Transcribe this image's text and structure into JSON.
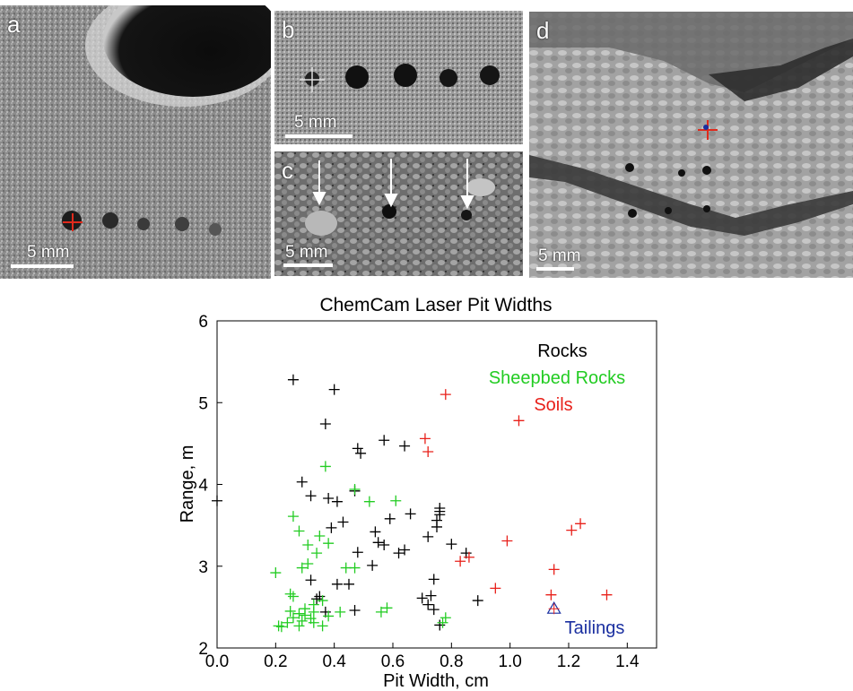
{
  "panels": {
    "a": {
      "letter": "a",
      "scale": "5 mm"
    },
    "b": {
      "letter": "b",
      "scale": "5 mm"
    },
    "c": {
      "letter": "c",
      "scale": "5 mm"
    },
    "d": {
      "letter": "d",
      "scale": "5 mm"
    }
  },
  "chart_data": {
    "type": "scatter",
    "title": "ChemCam Laser Pit Widths",
    "xlabel": "Pit Width, cm",
    "ylabel": "Range, m",
    "xlim": [
      0.0,
      1.5
    ],
    "ylim": [
      2,
      6
    ],
    "xticks": [
      "0.0",
      "0.2",
      "0.4",
      "0.6",
      "0.8",
      "1.0",
      "1.2",
      "1.4"
    ],
    "yticks": [
      "2",
      "3",
      "4",
      "5",
      "6"
    ],
    "grid": false,
    "legend_placement": "top-right",
    "series": [
      {
        "name": "Rocks",
        "color": "#000000",
        "marker": "plus",
        "points": [
          [
            0.26,
            5.28
          ],
          [
            0.4,
            5.16
          ],
          [
            0.37,
            4.74
          ],
          [
            0.57,
            4.54
          ],
          [
            0.48,
            4.44
          ],
          [
            0.64,
            4.47
          ],
          [
            0.49,
            4.38
          ],
          [
            0.29,
            4.03
          ],
          [
            0.47,
            3.92
          ],
          [
            0.32,
            3.86
          ],
          [
            0.38,
            3.83
          ],
          [
            0.41,
            3.79
          ],
          [
            0.59,
            3.58
          ],
          [
            0.66,
            3.64
          ],
          [
            0.76,
            3.71
          ],
          [
            0.76,
            3.67
          ],
          [
            0.76,
            3.63
          ],
          [
            0.75,
            3.56
          ],
          [
            0.75,
            3.48
          ],
          [
            0.43,
            3.54
          ],
          [
            0.39,
            3.47
          ],
          [
            0.72,
            3.36
          ],
          [
            0.54,
            3.42
          ],
          [
            0.55,
            3.29
          ],
          [
            0.57,
            3.26
          ],
          [
            0.48,
            3.17
          ],
          [
            0.62,
            3.16
          ],
          [
            0.64,
            3.2
          ],
          [
            0.8,
            3.27
          ],
          [
            0.85,
            3.16
          ],
          [
            0.53,
            3.01
          ],
          [
            0.32,
            2.83
          ],
          [
            0.41,
            2.78
          ],
          [
            0.45,
            2.78
          ],
          [
            0.34,
            2.6
          ],
          [
            0.35,
            2.63
          ],
          [
            0.7,
            2.61
          ],
          [
            0.73,
            2.64
          ],
          [
            0.74,
            2.84
          ],
          [
            0.72,
            2.53
          ],
          [
            0.74,
            2.47
          ],
          [
            0.89,
            2.58
          ],
          [
            0.47,
            2.46
          ],
          [
            0.37,
            2.44
          ],
          [
            0.76,
            2.28
          ],
          [
            0.0,
            3.8
          ]
        ]
      },
      {
        "name": "Sheepbed Rocks",
        "color": "#22cc22",
        "marker": "plus",
        "points": [
          [
            0.37,
            4.22
          ],
          [
            0.47,
            3.94
          ],
          [
            0.52,
            3.79
          ],
          [
            0.61,
            3.8
          ],
          [
            0.26,
            3.61
          ],
          [
            0.28,
            3.43
          ],
          [
            0.35,
            3.37
          ],
          [
            0.31,
            3.26
          ],
          [
            0.38,
            3.28
          ],
          [
            0.34,
            3.16
          ],
          [
            0.29,
            2.98
          ],
          [
            0.31,
            3.03
          ],
          [
            0.44,
            2.98
          ],
          [
            0.47,
            2.98
          ],
          [
            0.2,
            2.92
          ],
          [
            0.25,
            2.66
          ],
          [
            0.26,
            2.63
          ],
          [
            0.33,
            2.53
          ],
          [
            0.36,
            2.58
          ],
          [
            0.3,
            2.48
          ],
          [
            0.28,
            2.42
          ],
          [
            0.33,
            2.44
          ],
          [
            0.42,
            2.44
          ],
          [
            0.56,
            2.44
          ],
          [
            0.58,
            2.49
          ],
          [
            0.26,
            2.37
          ],
          [
            0.29,
            2.33
          ],
          [
            0.32,
            2.36
          ],
          [
            0.24,
            2.31
          ],
          [
            0.21,
            2.27
          ],
          [
            0.22,
            2.26
          ],
          [
            0.28,
            2.27
          ],
          [
            0.33,
            2.31
          ],
          [
            0.36,
            2.27
          ],
          [
            0.38,
            2.39
          ],
          [
            0.78,
            2.37
          ],
          [
            0.77,
            2.31
          ],
          [
            0.3,
            2.4
          ],
          [
            0.25,
            2.45
          ]
        ]
      },
      {
        "name": "Soils",
        "color": "#e8201a",
        "marker": "plus",
        "points": [
          [
            0.78,
            5.1
          ],
          [
            1.03,
            4.78
          ],
          [
            0.71,
            4.56
          ],
          [
            0.72,
            4.4
          ],
          [
            1.24,
            3.52
          ],
          [
            1.21,
            3.44
          ],
          [
            0.99,
            3.31
          ],
          [
            0.86,
            3.11
          ],
          [
            0.83,
            3.06
          ],
          [
            1.15,
            2.96
          ],
          [
            0.95,
            2.73
          ],
          [
            1.14,
            2.65
          ],
          [
            1.33,
            2.65
          ]
        ]
      },
      {
        "name": "Tailings",
        "color": "#1a2fa0",
        "marker": "triangle",
        "points": [
          [
            1.15,
            2.48
          ]
        ]
      }
    ]
  }
}
